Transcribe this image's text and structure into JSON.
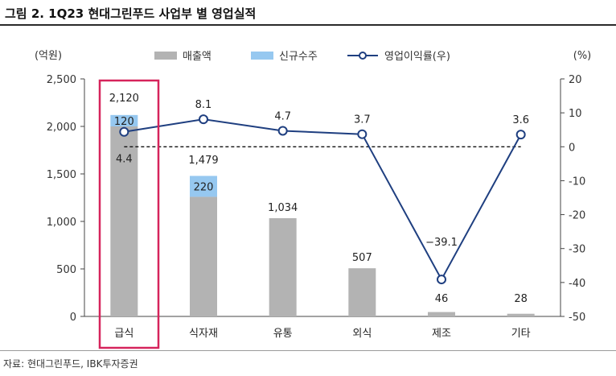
{
  "title": "그림 2. 1Q23 현대그린푸드 사업부 별 영업실적",
  "source": "자료: 현대그린푸드, IBK투자증권",
  "colors": {
    "sales": "#b3b3b3",
    "new_contracts": "#96c8f0",
    "margin_line": "#1f3f80",
    "highlight": "#d6245c"
  },
  "chart_data": {
    "type": "bar",
    "categories": [
      "급식",
      "식자재",
      "유통",
      "외식",
      "제조",
      "기타"
    ],
    "y_left_unit": "(억원)",
    "y_right_unit": "(%)",
    "y_left_ticks": [
      "2,500",
      "2,000",
      "1,500",
      "1,000",
      "500",
      "0"
    ],
    "y_right_ticks": [
      "20",
      "10",
      "0",
      "-10",
      "-20",
      "-30",
      "-40",
      "-50"
    ],
    "ylim_left": [
      0,
      2500
    ],
    "ylim_right": [
      -50,
      20
    ],
    "series": [
      {
        "name": "매출액",
        "type": "bar",
        "stack": "total",
        "axis": "left",
        "values": [
          2000,
          1259,
          1034,
          507,
          46,
          28
        ]
      },
      {
        "name": "신규수주",
        "type": "bar",
        "stack": "total",
        "axis": "left",
        "values": [
          120,
          220,
          0,
          0,
          0,
          0
        ]
      },
      {
        "name": "영업이익률(우)",
        "type": "line",
        "axis": "right",
        "values": [
          4.4,
          8.1,
          4.7,
          3.7,
          -39.1,
          3.6
        ]
      }
    ],
    "bar_total_labels": [
      "2,120",
      "1,479",
      "1,034",
      "507",
      "46",
      "28"
    ],
    "new_contract_labels": [
      "120",
      "220",
      "",
      "",
      "",
      ""
    ],
    "margin_labels": [
      "4.4",
      "8.1",
      "4.7",
      "3.7",
      "-39.1",
      "3.6"
    ],
    "reference_line": {
      "axis": "right",
      "value": 0,
      "style": "dashed"
    },
    "highlight_category": "급식",
    "legend_position": "top-center",
    "grid": false
  }
}
